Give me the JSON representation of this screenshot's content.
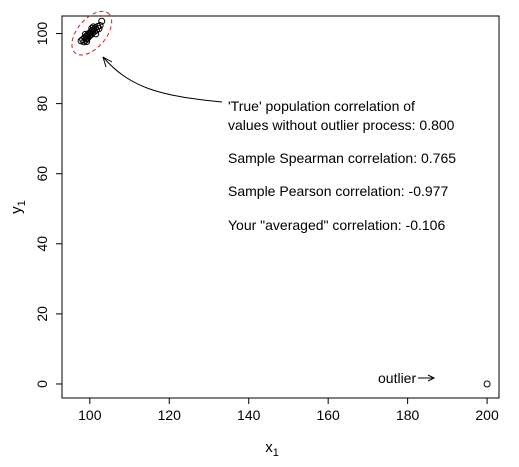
{
  "chart_data": {
    "type": "scatter",
    "title": "",
    "xlabel": "x",
    "xlabel_sub": "1",
    "ylabel": "y",
    "ylabel_sub": "1",
    "xlim": [
      93,
      203
    ],
    "ylim": [
      -4,
      105
    ],
    "xticks": [
      100,
      120,
      140,
      160,
      180,
      200
    ],
    "yticks": [
      0,
      20,
      40,
      60,
      80,
      100
    ],
    "grid": false,
    "points": [
      {
        "x": 97.8,
        "y": 97.9
      },
      {
        "x": 98.2,
        "y": 98.3
      },
      {
        "x": 98.5,
        "y": 97.6
      },
      {
        "x": 98.7,
        "y": 98.8
      },
      {
        "x": 99.0,
        "y": 98.1
      },
      {
        "x": 99.1,
        "y": 99.2
      },
      {
        "x": 99.3,
        "y": 98.5
      },
      {
        "x": 99.4,
        "y": 99.6
      },
      {
        "x": 99.6,
        "y": 98.9
      },
      {
        "x": 99.7,
        "y": 99.9
      },
      {
        "x": 99.9,
        "y": 99.3
      },
      {
        "x": 100.0,
        "y": 100.2
      },
      {
        "x": 100.1,
        "y": 99.5
      },
      {
        "x": 100.3,
        "y": 100.5
      },
      {
        "x": 100.4,
        "y": 99.8
      },
      {
        "x": 100.6,
        "y": 100.9
      },
      {
        "x": 100.8,
        "y": 100.3
      },
      {
        "x": 101.0,
        "y": 101.2
      },
      {
        "x": 101.2,
        "y": 100.6
      },
      {
        "x": 101.4,
        "y": 101.6
      },
      {
        "x": 101.7,
        "y": 101.0
      },
      {
        "x": 102.0,
        "y": 102.0
      },
      {
        "x": 102.3,
        "y": 101.4
      },
      {
        "x": 102.6,
        "y": 102.3
      },
      {
        "x": 103.0,
        "y": 103.5
      },
      {
        "x": 98.9,
        "y": 99.8
      },
      {
        "x": 100.5,
        "y": 101.5
      },
      {
        "x": 101.5,
        "y": 99.9
      },
      {
        "x": 99.2,
        "y": 97.7
      },
      {
        "x": 100.9,
        "y": 101.9
      },
      {
        "x": 200,
        "y": 0
      }
    ],
    "ellipse": {
      "cx": 100.5,
      "cy": 100.1,
      "rx": 6.5,
      "ry": 3.6,
      "angle_deg": -50,
      "color": "#cc2222"
    },
    "arrow_color": "#000000",
    "annotations": {
      "line1": "'True' population correlation of",
      "line2": "values without outlier process:  0.800",
      "line3": "Sample Spearman correlation: 0.765",
      "line4": "Sample Pearson correlation:   -0.977",
      "line5": "Your \"averaged\" correlation:   -0.106",
      "outlier_label": "outlier"
    }
  }
}
